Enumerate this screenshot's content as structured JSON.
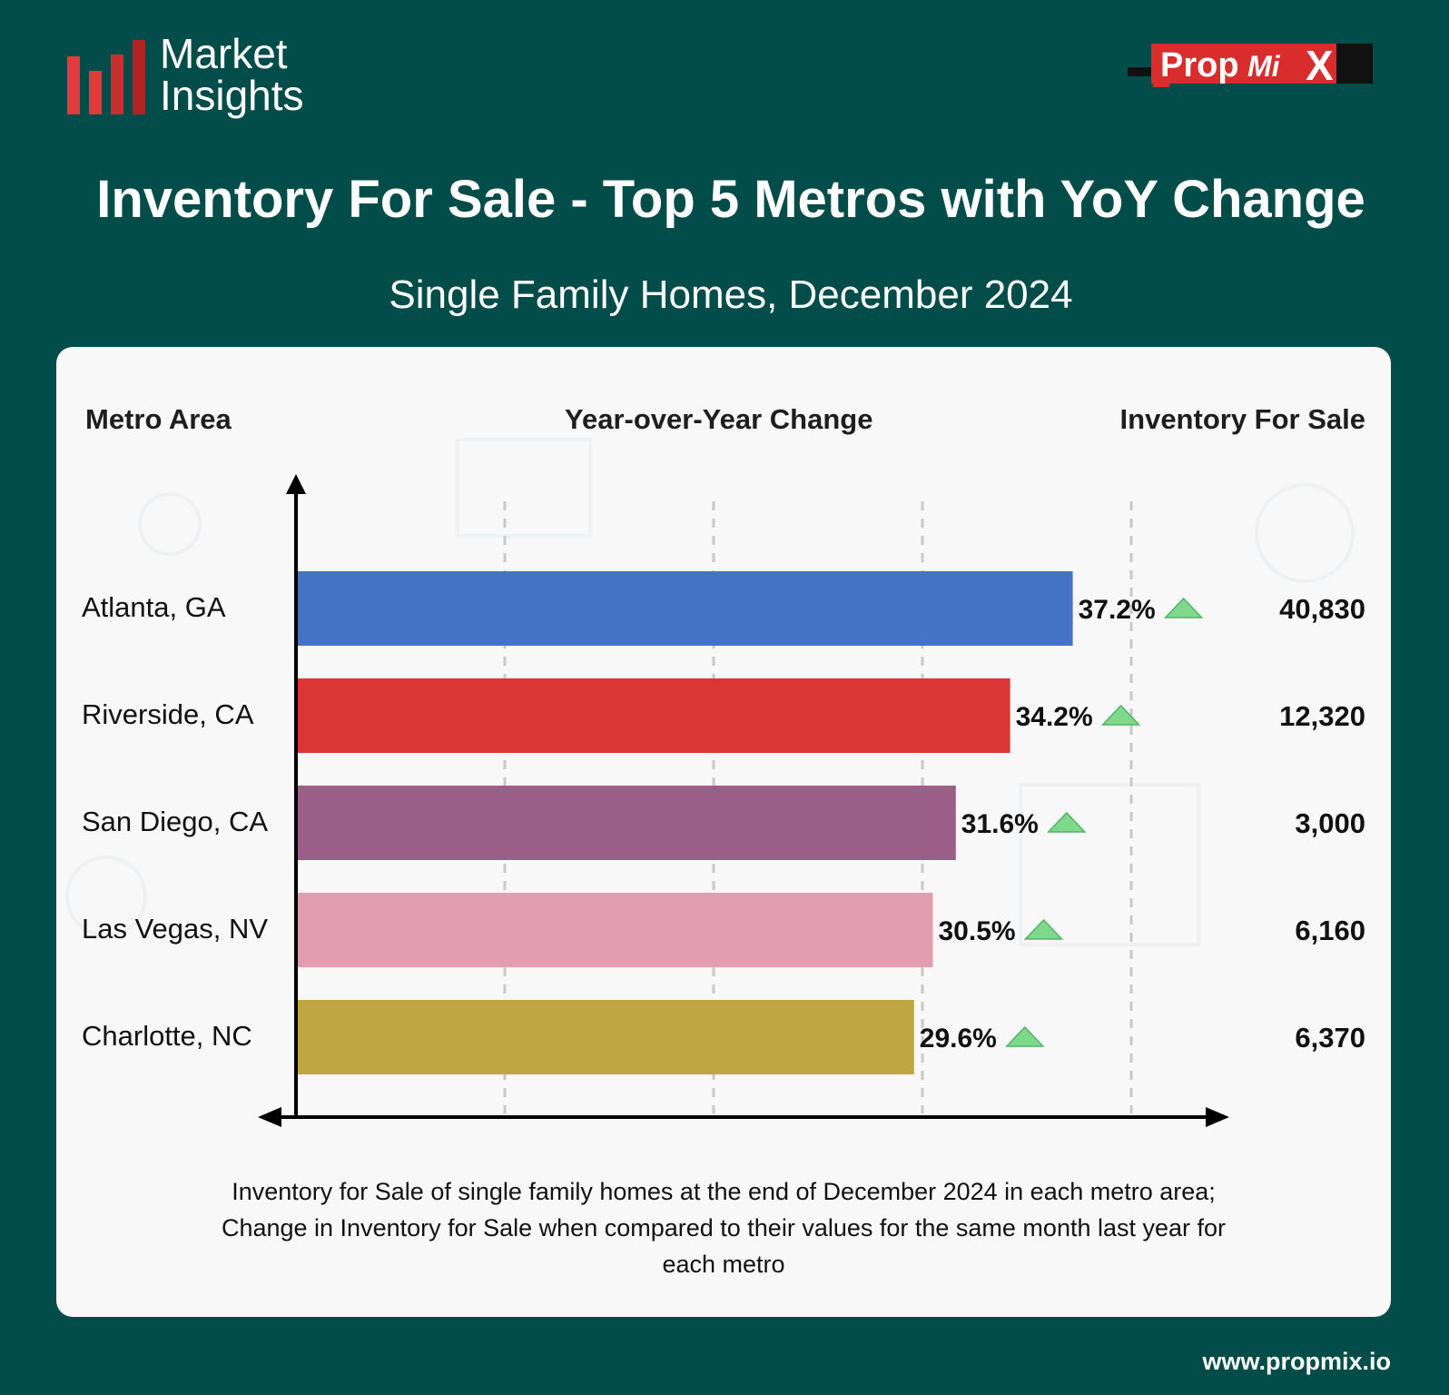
{
  "brand": {
    "line1": "Market",
    "line2": "Insights",
    "bar_colors": [
      "#e03a3a",
      "#e03a3a",
      "#c82f2f",
      "#b02323"
    ]
  },
  "logo": {
    "text_main": "Prop",
    "text_mi": "Mi",
    "text_x": "X",
    "color": "#d92c2c"
  },
  "title": "Inventory For Sale - Top 5 Metros with YoY Change",
  "subtitle": "Single Family Homes, December 2024",
  "columns": {
    "metro": "Metro Area",
    "yoy": "Year-over-Year Change",
    "inventory": "Inventory For Sale"
  },
  "chart_data": {
    "type": "bar",
    "orientation": "horizontal",
    "categories": [
      "Atlanta, GA",
      "Riverside, CA",
      "San Diego, CA",
      "Las Vegas, NV",
      "Charlotte, NC"
    ],
    "values": [
      37.2,
      34.2,
      31.6,
      30.5,
      29.6
    ],
    "value_labels": [
      "37.2%",
      "34.2%",
      "31.6%",
      "30.5%",
      "29.6%"
    ],
    "inventory": [
      "40,830",
      "12,320",
      "3,000",
      "6,160",
      "6,370"
    ],
    "colors": [
      "#4472c4",
      "#dc3535",
      "#9b5f87",
      "#e39db2",
      "#bfa640"
    ],
    "trend_icon": "up-triangle-icon",
    "trend_color": "#7fd98c",
    "xlim": [
      0,
      45
    ],
    "grid": "dashed vertical"
  },
  "footnote": {
    "line1": "Inventory for Sale of single family homes at the end of December 2024 in each metro area;",
    "line2": "Change in Inventory for Sale when compared to their values for the same month last year for",
    "line3": "each metro"
  },
  "url": "www.propmix.io"
}
